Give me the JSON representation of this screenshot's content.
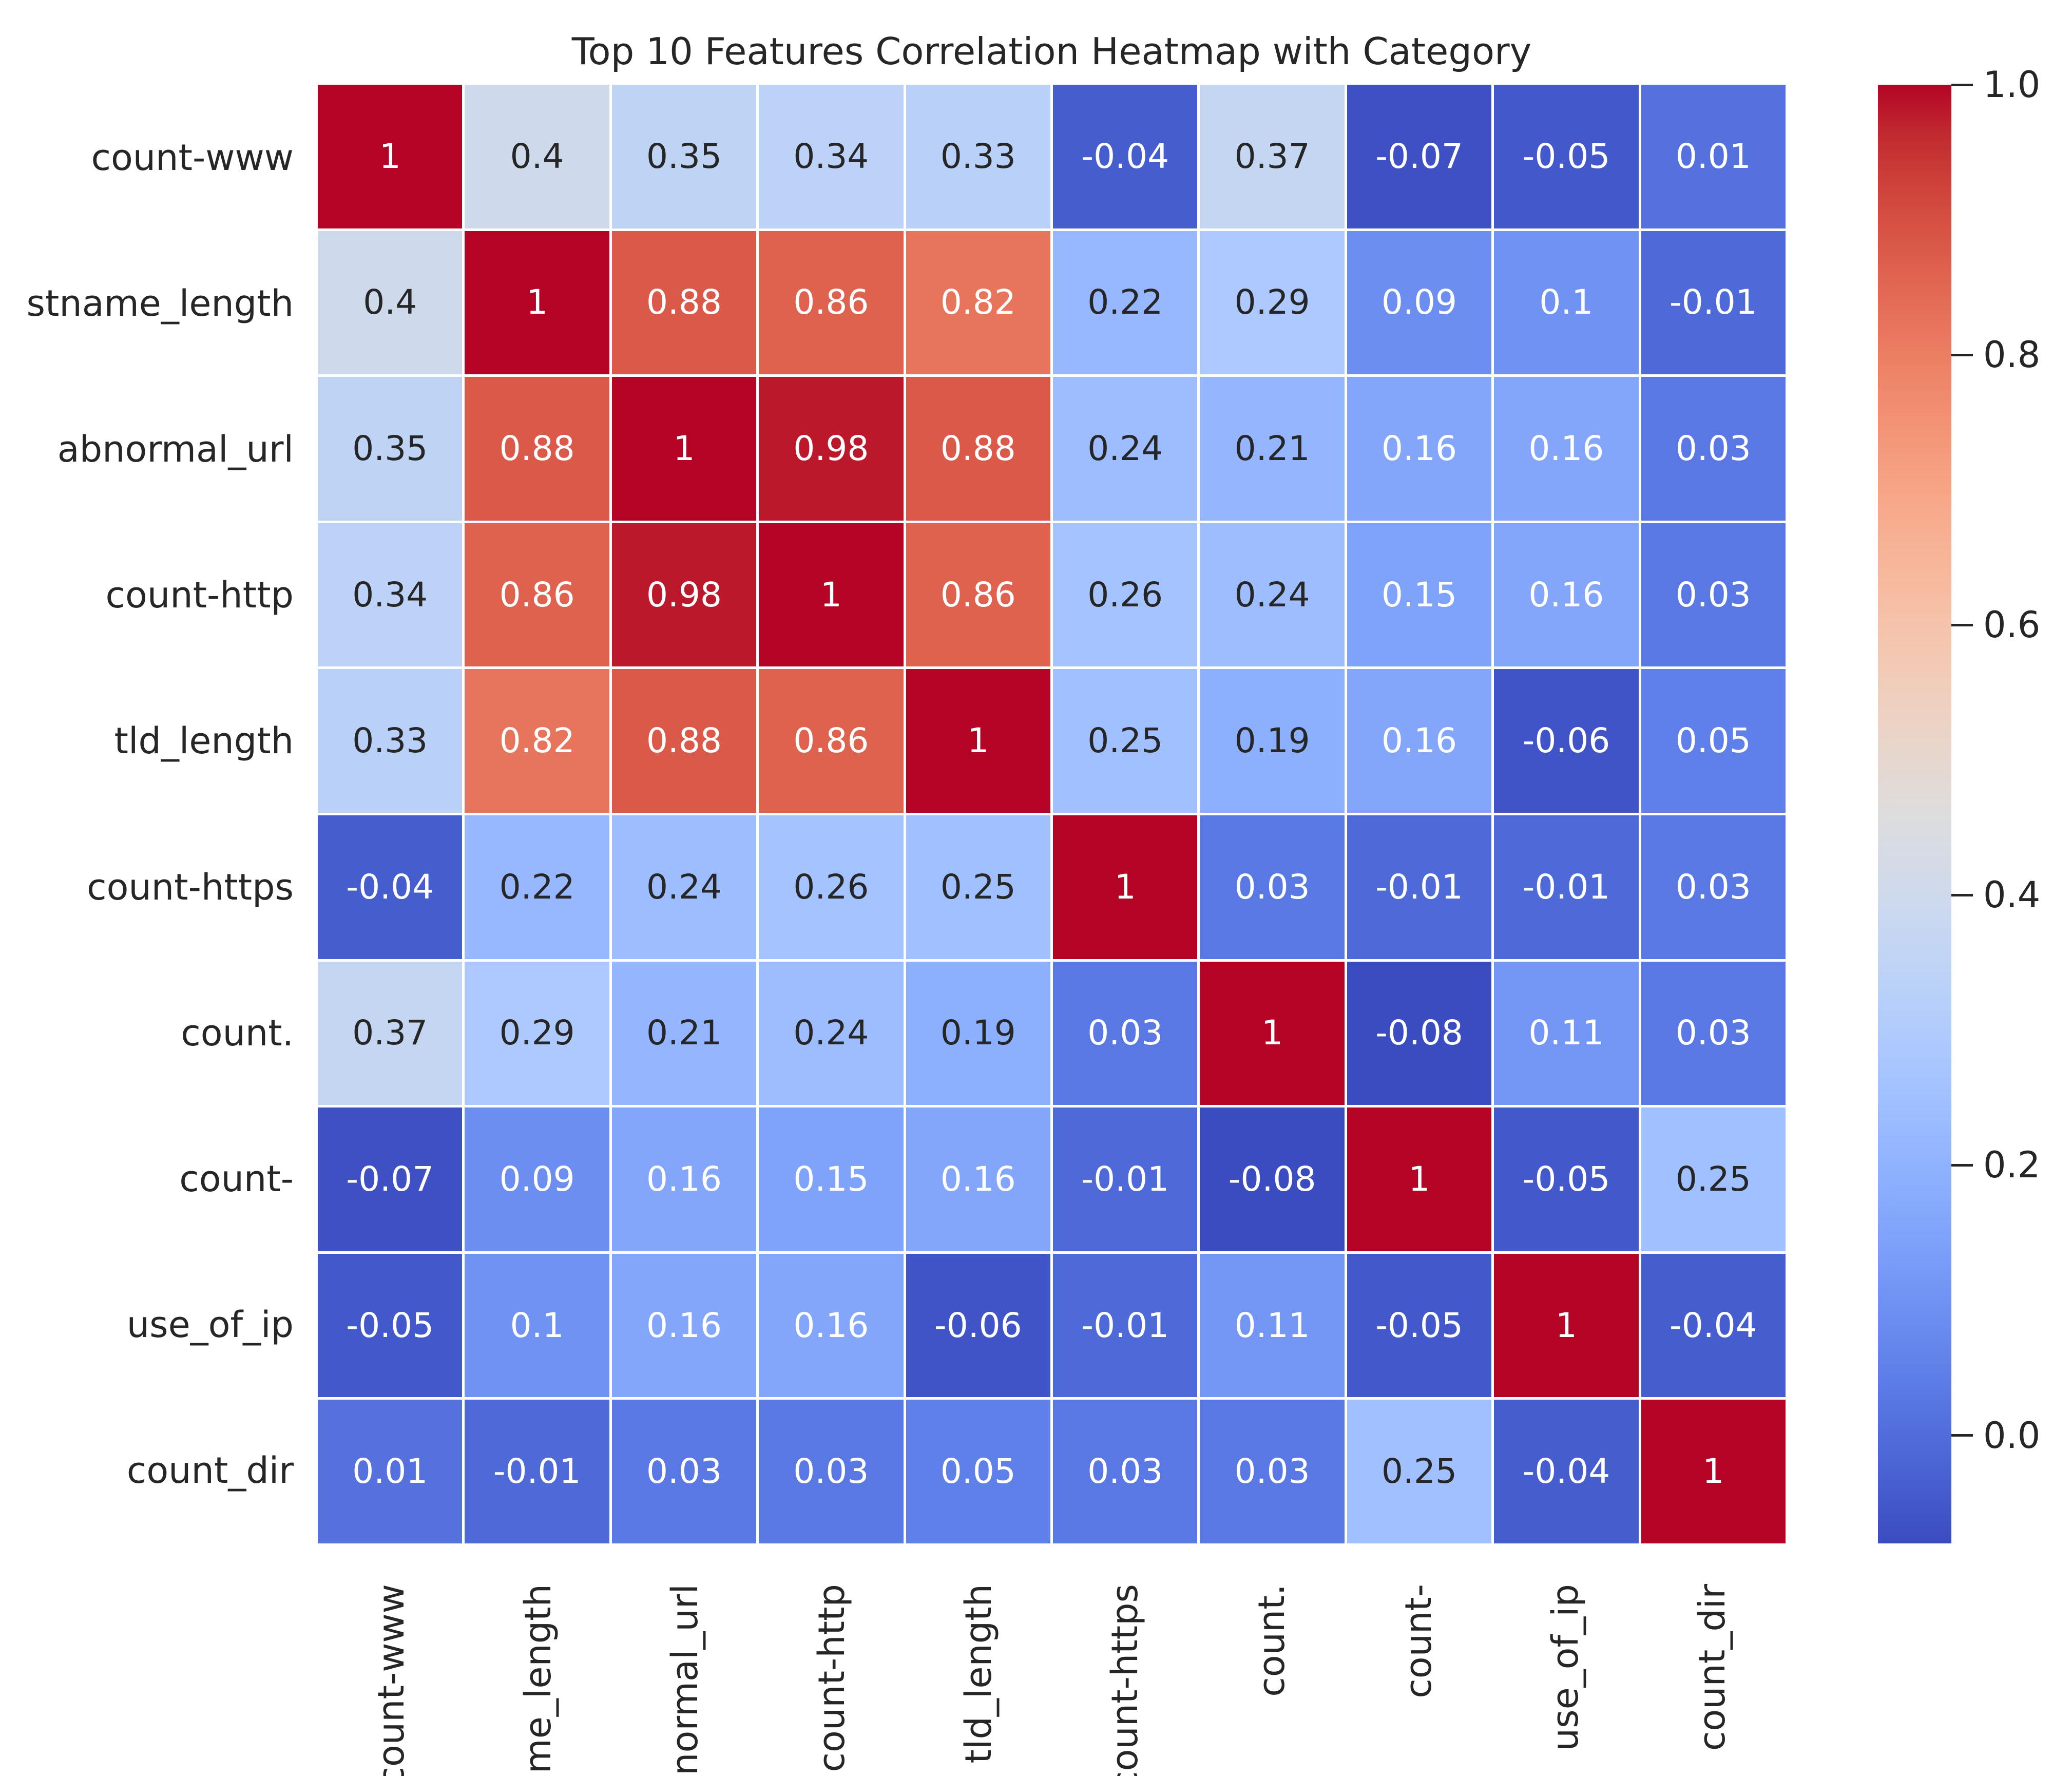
{
  "title": "Top 10 Features Correlation Heatmap with Category",
  "chart_data": {
    "type": "heatmap",
    "title": "Top 10 Features Correlation Heatmap with Category",
    "categories": [
      "count-www",
      "stname_length",
      "abnormal_url",
      "count-http",
      "tld_length",
      "count-https",
      "count.",
      "count-",
      "use_of_ip",
      "count_dir"
    ],
    "matrix": [
      [
        1,
        0.4,
        0.35,
        0.34,
        0.33,
        -0.04,
        0.37,
        -0.07,
        -0.05,
        0.01
      ],
      [
        0.4,
        1,
        0.88,
        0.86,
        0.82,
        0.22,
        0.29,
        0.09,
        0.1,
        -0.01
      ],
      [
        0.35,
        0.88,
        1,
        0.98,
        0.88,
        0.24,
        0.21,
        0.16,
        0.16,
        0.03
      ],
      [
        0.34,
        0.86,
        0.98,
        1,
        0.86,
        0.26,
        0.24,
        0.15,
        0.16,
        0.03
      ],
      [
        0.33,
        0.82,
        0.88,
        0.86,
        1,
        0.25,
        0.19,
        0.16,
        -0.06,
        0.05
      ],
      [
        -0.04,
        0.22,
        0.24,
        0.26,
        0.25,
        1,
        0.03,
        -0.01,
        -0.01,
        0.03
      ],
      [
        0.37,
        0.29,
        0.21,
        0.24,
        0.19,
        0.03,
        1,
        -0.08,
        0.11,
        0.03
      ],
      [
        -0.07,
        0.09,
        0.16,
        0.15,
        0.16,
        -0.01,
        -0.08,
        1,
        -0.05,
        0.25
      ],
      [
        -0.05,
        0.1,
        0.16,
        0.16,
        -0.06,
        -0.01,
        0.11,
        -0.05,
        1,
        -0.04
      ],
      [
        0.01,
        -0.01,
        0.03,
        0.03,
        0.05,
        0.03,
        0.03,
        0.25,
        -0.04,
        1
      ]
    ],
    "vmin": -0.08,
    "vmax": 1.0,
    "colormap": "coolwarm",
    "colormap_anchors": [
      "#3b4cc0",
      "#445acc",
      "#4d68d7",
      "#5775e1",
      "#6282ea",
      "#6c8ef1",
      "#779af7",
      "#82a5fb",
      "#8db0fe",
      "#98b9ff",
      "#a3c2ff",
      "#aec9fd",
      "#b8d0f9",
      "#c2d5f4",
      "#ccd9ee",
      "#d5dbe6",
      "#dddddd",
      "#e5d8d1",
      "#ecd3c5",
      "#f1ccb9",
      "#f5c4ad",
      "#f7bba0",
      "#f7b194",
      "#f7a687",
      "#f49a7b",
      "#f18d6f",
      "#ec7f63",
      "#e57058",
      "#de604d",
      "#d55042",
      "#cb3e38",
      "#c0282f",
      "#b40426"
    ],
    "colorbar_ticks": [
      1.0,
      0.8,
      0.6,
      0.4,
      0.2,
      0.0
    ],
    "legend_position": "right-colorbar",
    "grid_line_color": "#ffffff",
    "annotation_text_dark": "#262626",
    "annotation_text_light": "#ffffff",
    "axis_text_color": "#262626",
    "grid": "off"
  }
}
